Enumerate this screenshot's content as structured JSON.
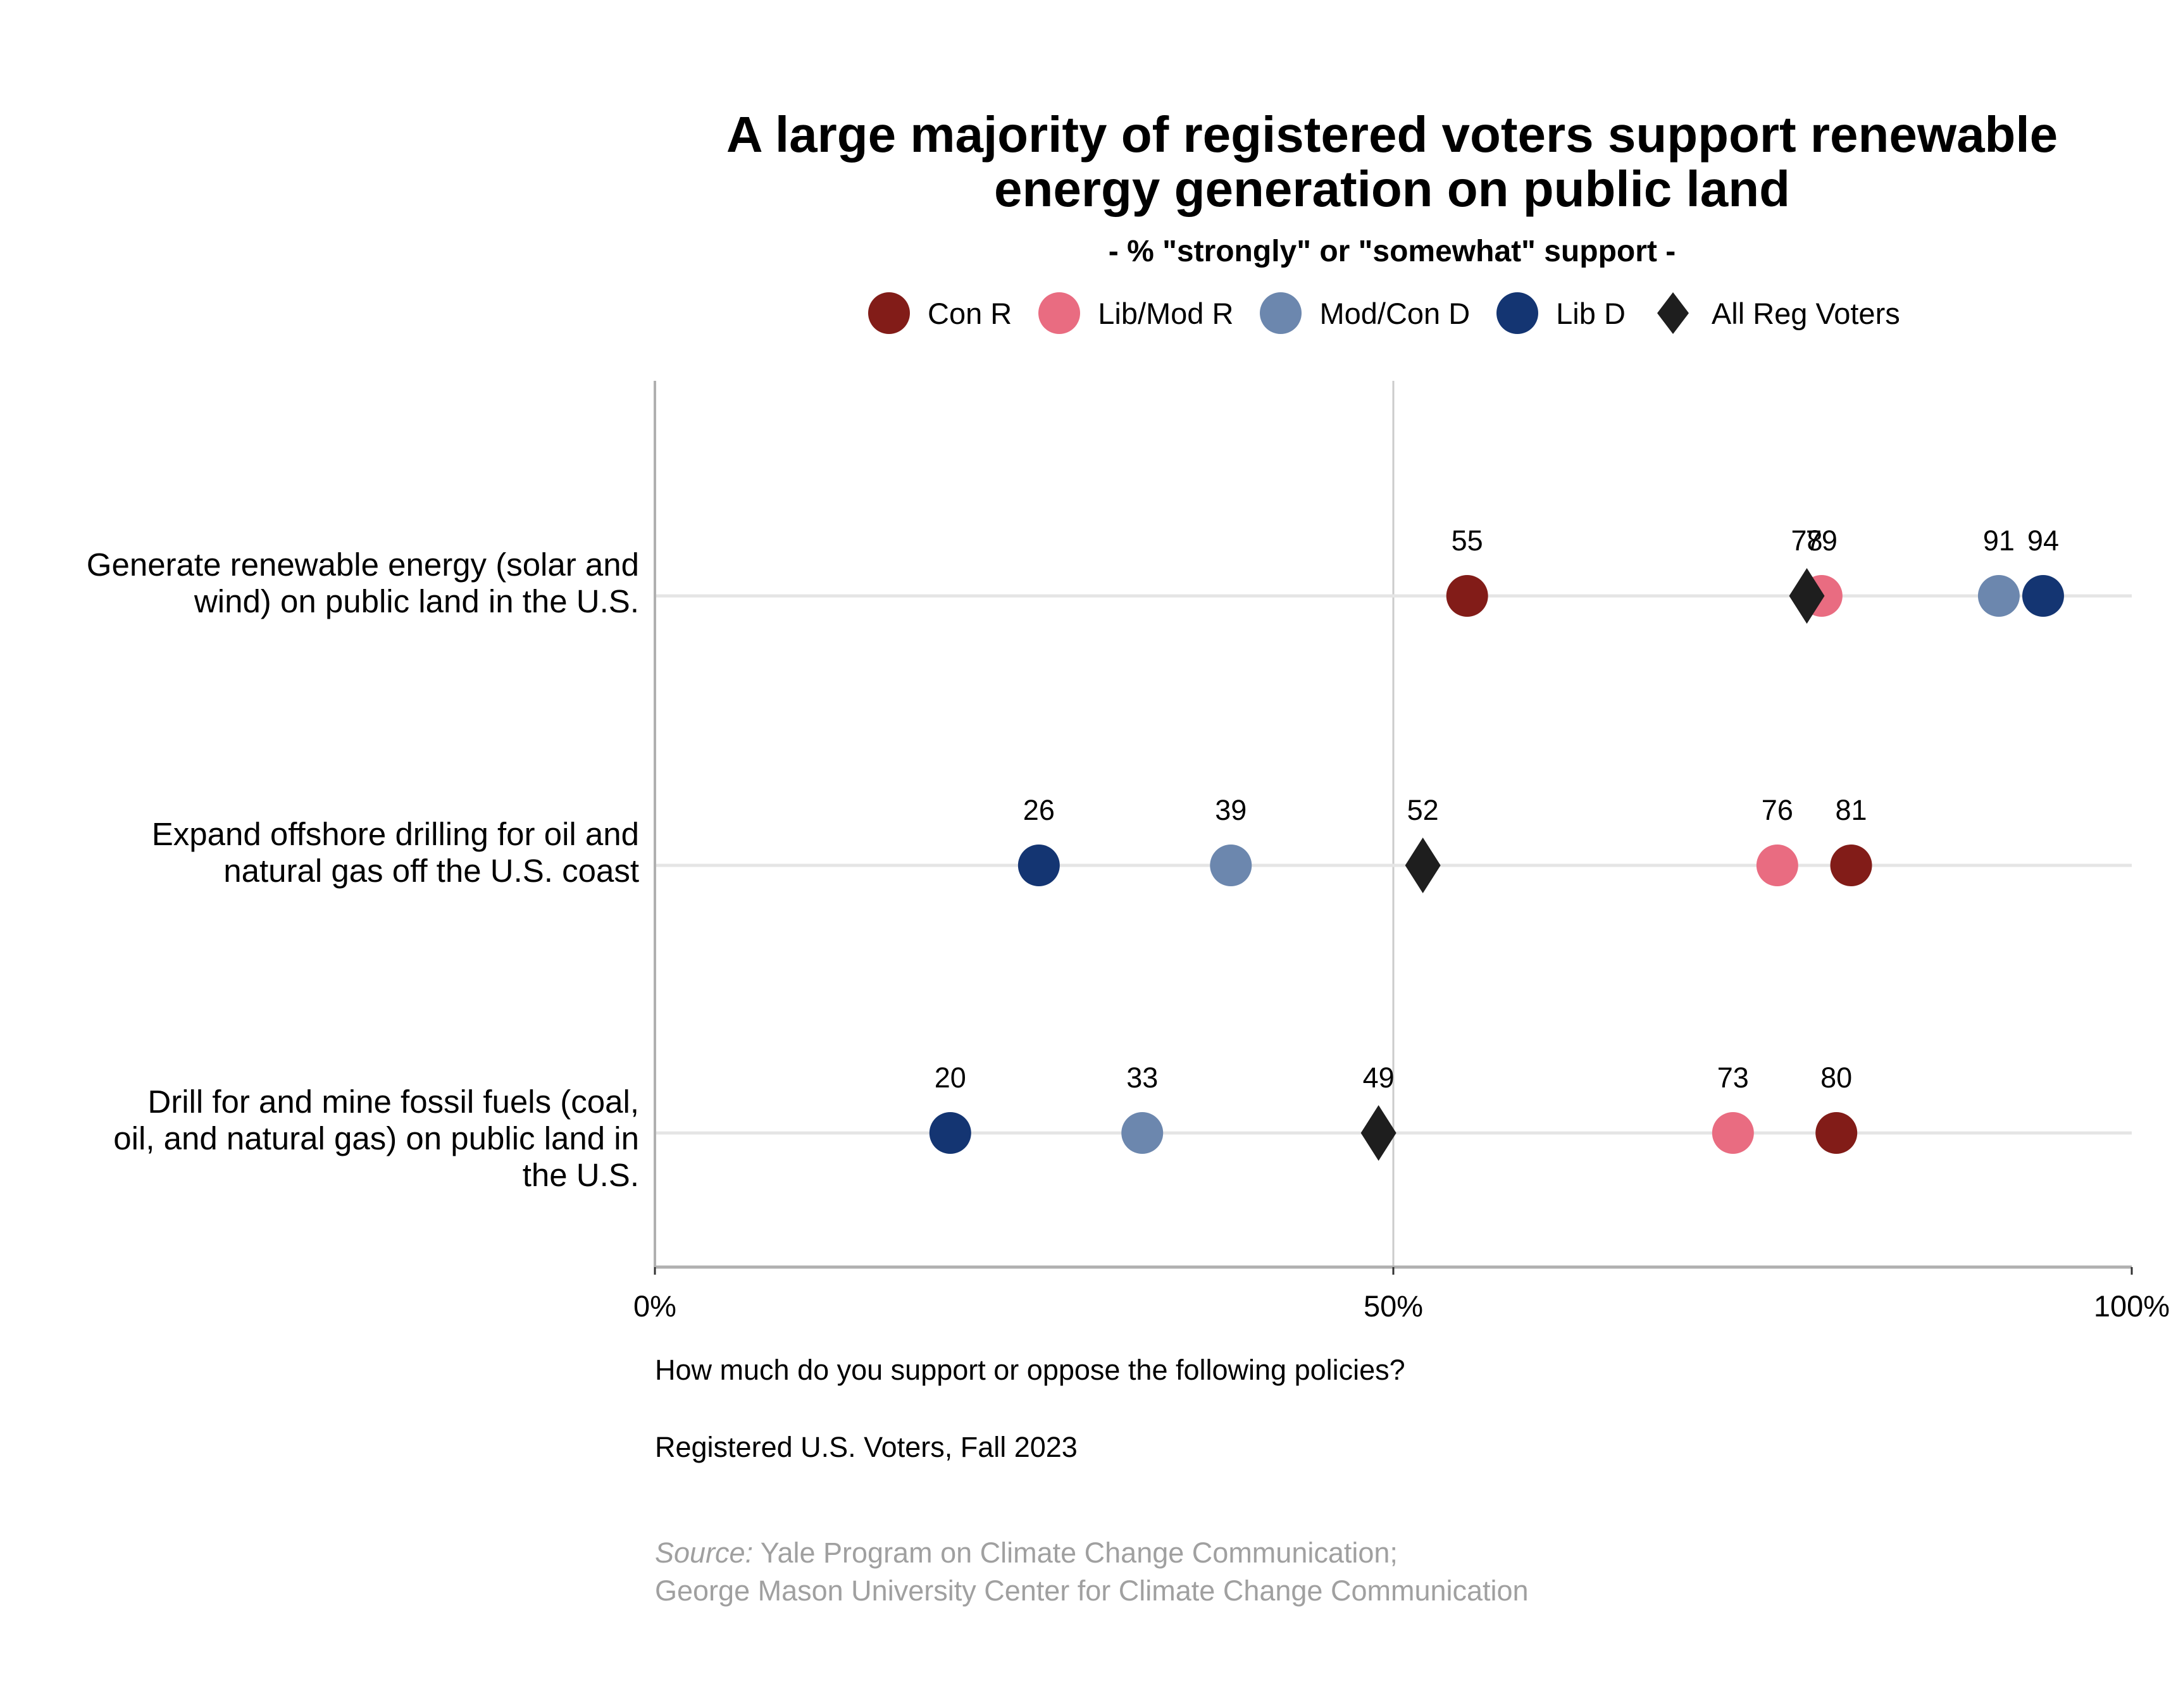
{
  "chart_data": {
    "type": "scatter",
    "subtype": "dot-plot",
    "title": "A large majority of registered voters support renewable energy generation on public land",
    "title_lines": [
      "A large majority of registered voters support renewable",
      "energy generation on public land"
    ],
    "subtitle": "- % \"strongly\" or \"somewhat\" support -",
    "xlim": [
      0,
      100
    ],
    "x_ticks": [
      0,
      50,
      100
    ],
    "x_tick_labels": [
      "0%",
      "50%",
      "100%"
    ],
    "grid": true,
    "legend_position": "top-center",
    "categories": [
      {
        "label": "Generate renewable energy (solar and wind) on public land in the U.S.",
        "label_lines": [
          "Generate renewable energy (solar and",
          "wind) on public land in the U.S."
        ]
      },
      {
        "label": "Expand offshore drilling for oil and natural gas off the U.S. coast",
        "label_lines": [
          "Expand offshore drilling for oil and",
          "natural gas off the U.S. coast"
        ]
      },
      {
        "label": "Drill for and mine fossil fuels (coal, oil, and natural gas) on public land in the U.S.",
        "label_lines": [
          "Drill for and mine fossil fuels (coal,",
          "oil, and natural gas) on public land in",
          "the U.S."
        ]
      }
    ],
    "series": [
      {
        "name": "Con R",
        "marker": "circle",
        "color": "#821c18",
        "values": [
          55,
          81,
          80
        ]
      },
      {
        "name": "Lib/Mod R",
        "marker": "circle",
        "color": "#e96c81",
        "values": [
          79,
          76,
          73
        ]
      },
      {
        "name": "Mod/Con D",
        "marker": "circle",
        "color": "#6c87ae",
        "values": [
          91,
          39,
          33
        ]
      },
      {
        "name": "Lib D",
        "marker": "circle",
        "color": "#143572",
        "values": [
          94,
          26,
          20
        ]
      },
      {
        "name": "All Reg Voters",
        "marker": "diamond",
        "color": "#1e1e1e",
        "values": [
          78,
          52,
          49
        ]
      }
    ]
  },
  "notes": {
    "question": "How much do you support or oppose the following policies?",
    "sample": "Registered U.S. Voters, Fall 2023",
    "source_prefix": "Source:",
    "source_line1": " Yale Program on Climate Change Communication;",
    "source_line2": "George Mason University Center for Climate Change Communication"
  }
}
